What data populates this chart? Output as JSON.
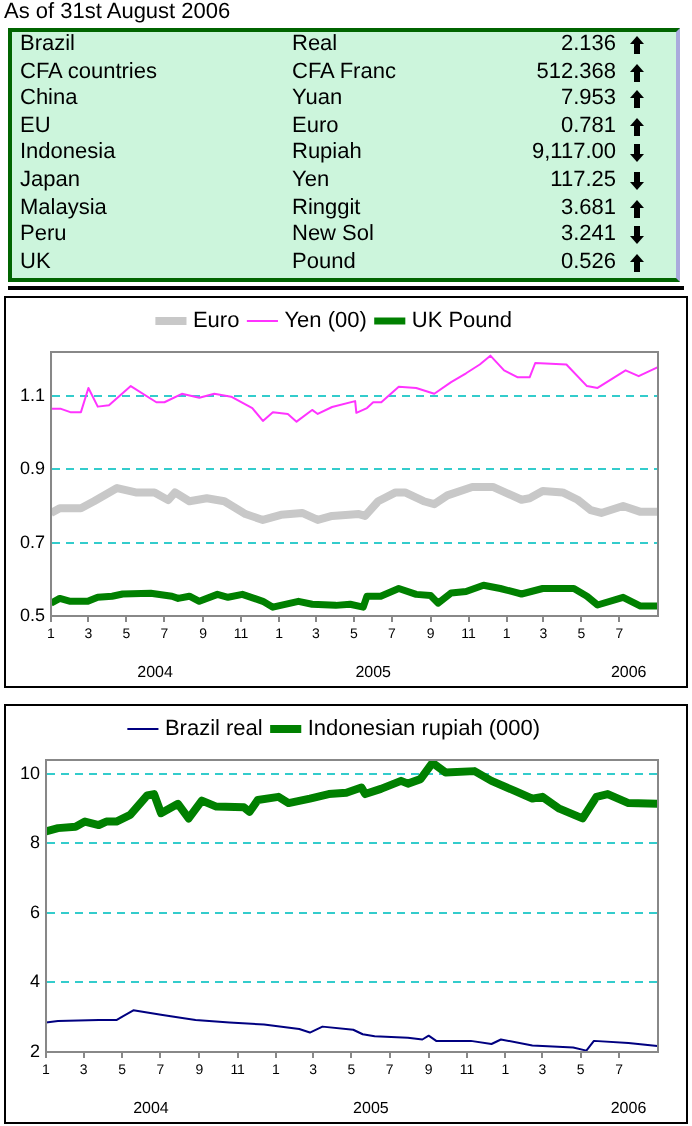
{
  "chart_data": [
    {
      "type": "other",
      "title": "As of 31st August 2006",
      "categories": [
        "Brazil",
        "CFA countries",
        "China",
        "EU",
        "Indonesia",
        "Japan",
        "Malaysia",
        "Peru",
        "UK"
      ],
      "y2_categories": [
        "Real",
        "CFA Franc",
        "Yuan",
        "Euro",
        "Rupiah",
        "Yen",
        "Ringgit",
        "New Sol",
        "Pound"
      ],
      "values": [
        2.136,
        512.368,
        7.953,
        0.781,
        9117.0,
        117.25,
        3.681,
        3.241,
        0.526
      ],
      "value_labels": [
        "2.136",
        "512.368",
        "7.953",
        "0.781",
        "9,117.00",
        "117.25",
        "3.681",
        "3.241",
        "0.526"
      ]
    },
    {
      "type": "line",
      "legend": "top",
      "grid": "y",
      "xlim": [
        "2004-01-01",
        "2006-09-01"
      ],
      "ylim": [
        0.5,
        1.22
      ],
      "yticks": [
        {
          "value": 0.5,
          "label": "0.5"
        },
        {
          "value": 0.7,
          "label": "0.7"
        },
        {
          "value": 0.9,
          "label": "0.9"
        },
        {
          "value": 1.1,
          "label": "1.1"
        }
      ],
      "xticks": [
        {
          "value": "2004-01",
          "label": "1"
        },
        {
          "value": "2004-03",
          "label": "3"
        },
        {
          "value": "2004-05",
          "label": "5"
        },
        {
          "value": "2004-07",
          "label": "7"
        },
        {
          "value": "2004-09",
          "label": "9"
        },
        {
          "value": "2004-11",
          "label": "11"
        },
        {
          "value": "2005-01",
          "label": "1"
        },
        {
          "value": "2005-03",
          "label": "3"
        },
        {
          "value": "2005-05",
          "label": "5"
        },
        {
          "value": "2005-07",
          "label": "7"
        },
        {
          "value": "2005-09",
          "label": "9"
        },
        {
          "value": "2005-11",
          "label": "11"
        },
        {
          "value": "2006-01",
          "label": "1"
        },
        {
          "value": "2006-03",
          "label": "3"
        },
        {
          "value": "2006-05",
          "label": "5"
        },
        {
          "value": "2006-07",
          "label": "7"
        }
      ],
      "x2lim": [
        "2004-01-01",
        "2006-09-01"
      ],
      "x2ticks": [
        {
          "value": "2004-06-16",
          "label": "2004"
        },
        {
          "value": "2005-06",
          "label": "2005"
        },
        {
          "value": "2006-07-16",
          "label": "2006"
        }
      ],
      "series": [
        {
          "name": "Euro",
          "color": "#c8c8c8",
          "x": [
            "2004-01-01",
            "2004-01-15",
            "2004-02-18",
            "2004-03-10",
            "2004-04-16",
            "2004-05-16",
            "2004-06-15",
            "2004-07-07",
            "2004-07-18",
            "2004-08-10",
            "2004-09-07",
            "2004-10-05",
            "2004-11-08",
            "2004-12-06",
            "2005-01-04",
            "2005-02-07",
            "2005-03-04",
            "2005-03-27",
            "2005-05-09",
            "2005-05-19",
            "2005-06-09",
            "2005-07-07",
            "2005-07-22",
            "2005-08-21",
            "2005-09-07",
            "2005-09-28",
            "2005-11-07",
            "2005-12-10",
            "2006-01-25",
            "2006-02-07",
            "2006-02-28",
            "2006-04-01",
            "2006-04-25",
            "2006-05-16",
            "2006-06-02",
            "2006-07-07",
            "2006-08-04",
            "2006-08-31"
          ],
          "values": [
            0.781,
            0.794,
            0.794,
            0.813,
            0.849,
            0.837,
            0.837,
            0.816,
            0.837,
            0.813,
            0.821,
            0.813,
            0.778,
            0.762,
            0.776,
            0.781,
            0.762,
            0.773,
            0.778,
            0.773,
            0.813,
            0.837,
            0.837,
            0.813,
            0.805,
            0.829,
            0.852,
            0.852,
            0.817,
            0.821,
            0.841,
            0.837,
            0.817,
            0.789,
            0.781,
            0.8,
            0.784,
            0.784
          ]
        },
        {
          "name": "Yen (00)",
          "color": "#ff33ff",
          "x": [
            "2004-01-01",
            "2004-01-17",
            "2004-02-01",
            "2004-02-18",
            "2004-03-01",
            "2004-03-16",
            "2004-04-03",
            "2004-05-08",
            "2004-06-18",
            "2004-07-01",
            "2004-07-29",
            "2004-08-26",
            "2004-09-19",
            "2004-10-16",
            "2004-11-19",
            "2004-12-06",
            "2004-12-22",
            "2005-01-15",
            "2005-01-29",
            "2005-02-23",
            "2005-03-04",
            "2005-03-27",
            "2005-05-03",
            "2005-05-05",
            "2005-05-22",
            "2005-06-01",
            "2005-06-14",
            "2005-07-12",
            "2005-08-09",
            "2005-09-07",
            "2005-10-04",
            "2005-10-28",
            "2005-11-19",
            "2005-12-06",
            "2005-12-28",
            "2006-01-19",
            "2006-02-07",
            "2006-02-16",
            "2006-04-07",
            "2006-05-10",
            "2006-05-27",
            "2006-07-11",
            "2006-08-01",
            "2006-08-31"
          ],
          "values": [
            1.065,
            1.065,
            1.056,
            1.056,
            1.122,
            1.071,
            1.075,
            1.127,
            1.083,
            1.083,
            1.106,
            1.095,
            1.106,
            1.098,
            1.067,
            1.032,
            1.056,
            1.051,
            1.03,
            1.062,
            1.051,
            1.07,
            1.086,
            1.054,
            1.067,
            1.083,
            1.083,
            1.125,
            1.122,
            1.106,
            1.138,
            1.162,
            1.186,
            1.21,
            1.17,
            1.151,
            1.151,
            1.19,
            1.186,
            1.127,
            1.122,
            1.17,
            1.154,
            1.178
          ]
        },
        {
          "name": "UK Pound",
          "color": "#008000",
          "x": [
            "2004-01-01",
            "2004-01-15",
            "2004-02-01",
            "2004-02-29",
            "2004-03-16",
            "2004-04-08",
            "2004-04-25",
            "2004-06-09",
            "2004-07-13",
            "2004-07-23",
            "2004-08-10",
            "2004-08-26",
            "2004-09-24",
            "2004-10-11",
            "2004-11-03",
            "2004-12-06",
            "2004-12-22",
            "2005-02-01",
            "2005-02-23",
            "2005-04-02",
            "2005-04-25",
            "2005-05-16",
            "2005-05-22",
            "2005-06-13",
            "2005-07-12",
            "2005-08-09",
            "2005-09-01",
            "2005-09-13",
            "2005-10-04",
            "2005-10-28",
            "2005-11-25",
            "2005-12-22",
            "2006-01-25",
            "2006-02-28",
            "2006-04-19",
            "2006-05-10",
            "2006-05-27",
            "2006-07-07",
            "2006-08-04",
            "2006-08-31"
          ],
          "values": [
            0.535,
            0.548,
            0.54,
            0.54,
            0.551,
            0.554,
            0.56,
            0.562,
            0.554,
            0.548,
            0.554,
            0.54,
            0.559,
            0.551,
            0.559,
            0.54,
            0.524,
            0.54,
            0.532,
            0.529,
            0.532,
            0.524,
            0.554,
            0.554,
            0.575,
            0.559,
            0.556,
            0.535,
            0.563,
            0.567,
            0.584,
            0.575,
            0.56,
            0.575,
            0.575,
            0.554,
            0.53,
            0.551,
            0.527,
            0.527
          ]
        }
      ]
    },
    {
      "type": "line",
      "legend": "top",
      "grid": "y",
      "xlim": [
        "2004-01-01",
        "2006-09-01"
      ],
      "ylim": [
        2,
        10.4
      ],
      "yticks": [
        2,
        4,
        6,
        8,
        10
      ],
      "xticks": [
        {
          "value": "2004-01",
          "label": "1"
        },
        {
          "value": "2004-03",
          "label": "3"
        },
        {
          "value": "2004-05",
          "label": "5"
        },
        {
          "value": "2004-07",
          "label": "7"
        },
        {
          "value": "2004-09",
          "label": "9"
        },
        {
          "value": "2004-11",
          "label": "11"
        },
        {
          "value": "2005-01",
          "label": "1"
        },
        {
          "value": "2005-03",
          "label": "3"
        },
        {
          "value": "2005-05",
          "label": "5"
        },
        {
          "value": "2005-07",
          "label": "7"
        },
        {
          "value": "2005-09",
          "label": "9"
        },
        {
          "value": "2005-11",
          "label": "11"
        },
        {
          "value": "2006-01",
          "label": "1"
        },
        {
          "value": "2006-03",
          "label": "3"
        },
        {
          "value": "2006-05",
          "label": "5"
        },
        {
          "value": "2006-07",
          "label": "7"
        }
      ],
      "x2lim": [
        "2004-01-01",
        "2006-09-01"
      ],
      "x2ticks": [
        {
          "value": "2004-06-16",
          "label": "2004"
        },
        {
          "value": "2005-06",
          "label": "2005"
        },
        {
          "value": "2006-07-16",
          "label": "2006"
        }
      ],
      "series": [
        {
          "name": "Brazil real",
          "color": "#000080",
          "x": [
            "2004-01-01",
            "2004-01-20",
            "2004-03-25",
            "2004-04-22",
            "2004-05-19",
            "2004-07-02",
            "2004-08-26",
            "2004-10-19",
            "2004-12-13",
            "2005-02-07",
            "2005-02-24",
            "2005-03-16",
            "2005-05-04",
            "2005-05-19",
            "2005-06-07",
            "2005-07-30",
            "2005-08-22",
            "2005-09-01",
            "2005-09-13",
            "2005-11-07",
            "2005-12-10",
            "2005-12-25",
            "2006-02-13",
            "2006-04-19",
            "2006-05-10",
            "2006-05-22",
            "2006-07-16",
            "2006-08-31"
          ],
          "values": [
            2.85,
            2.89,
            2.92,
            2.92,
            3.2,
            3.07,
            2.92,
            2.85,
            2.79,
            2.66,
            2.56,
            2.73,
            2.64,
            2.51,
            2.45,
            2.41,
            2.36,
            2.47,
            2.32,
            2.32,
            2.23,
            2.36,
            2.19,
            2.13,
            2.04,
            2.32,
            2.26,
            2.17
          ]
        },
        {
          "name": "Indonesian rupiah (000)",
          "color": "#008000",
          "x": [
            "2004-01-01",
            "2004-01-20",
            "2004-02-17",
            "2004-03-03",
            "2004-03-25",
            "2004-04-06",
            "2004-04-22",
            "2004-05-14",
            "2004-06-10",
            "2004-06-21",
            "2004-07-02",
            "2004-07-29",
            "2004-08-15",
            "2004-09-05",
            "2004-09-28",
            "2004-11-11",
            "2004-11-20",
            "2004-12-03",
            "2005-01-05",
            "2005-01-21",
            "2005-02-24",
            "2005-03-26",
            "2005-04-23",
            "2005-05-17",
            "2005-05-23",
            "2005-06-17",
            "2005-07-19",
            "2005-07-30",
            "2005-08-19",
            "2005-09-07",
            "2005-09-28",
            "2005-11-13",
            "2005-12-10",
            "2006-01-16",
            "2006-02-13",
            "2006-03-01",
            "2006-03-28",
            "2006-05-04",
            "2006-05-26",
            "2006-06-13",
            "2006-07-16",
            "2006-08-31"
          ],
          "values": [
            8.35,
            8.44,
            8.48,
            8.63,
            8.53,
            8.63,
            8.63,
            8.82,
            9.38,
            9.42,
            8.87,
            9.14,
            8.72,
            9.23,
            9.06,
            9.04,
            8.91,
            9.25,
            9.34,
            9.16,
            9.29,
            9.42,
            9.46,
            9.61,
            9.42,
            9.57,
            9.8,
            9.72,
            9.85,
            10.32,
            10.04,
            10.08,
            9.8,
            9.51,
            9.29,
            9.34,
            9,
            8.72,
            9.34,
            9.42,
            9.16,
            9.14
          ]
        }
      ]
    }
  ]
}
